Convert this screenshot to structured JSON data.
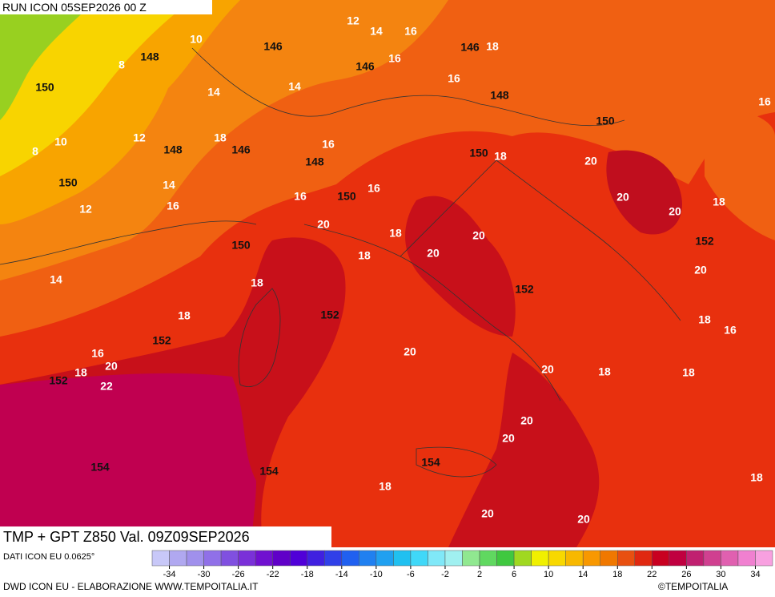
{
  "header": {
    "run": "RUN ICON 05SEP2026 00 Z",
    "field": "TMP + GPT Z850 Val. 09Z09SEP2026"
  },
  "map": {
    "temperature_labels": [
      12,
      14,
      16,
      10,
      18,
      16,
      8,
      16,
      14,
      14,
      16,
      10,
      12,
      18,
      16,
      18,
      20,
      8,
      14,
      16,
      16,
      20,
      18,
      12,
      16,
      20,
      20,
      18,
      20,
      18,
      20,
      20,
      18,
      14,
      18,
      18,
      16,
      16,
      20,
      20,
      18,
      18,
      18,
      20,
      22,
      20,
      20,
      18,
      18,
      20,
      20
    ],
    "geopotential_labels": [
      146,
      148,
      146,
      146,
      150,
      148,
      150,
      148,
      146,
      148,
      150,
      150,
      150,
      152,
      150,
      152,
      152,
      152,
      152,
      154,
      154,
      154
    ]
  },
  "scale": {
    "colors": [
      "#c8c8f8",
      "#b0a8f0",
      "#a090ec",
      "#9070e8",
      "#8050e0",
      "#7a30d8",
      "#7010d0",
      "#6000c8",
      "#5000d8",
      "#4020e0",
      "#3040e8",
      "#2060f0",
      "#2080f0",
      "#20a0f0",
      "#20c0f0",
      "#40d8f8",
      "#80e8f8",
      "#a0f0f0",
      "#90e890",
      "#60d860",
      "#40c840",
      "#a0d820",
      "#f0f000",
      "#f8d800",
      "#f8b800",
      "#f89800",
      "#f07800",
      "#e85010",
      "#e02810",
      "#c80020",
      "#c00040",
      "#c02070",
      "#d04090",
      "#e060b0",
      "#f080d0",
      "#f8a0e0"
    ],
    "ticks": [
      -34,
      -30,
      -26,
      -22,
      -18,
      -14,
      -10,
      -6,
      -2,
      2,
      6,
      10,
      14,
      18,
      22,
      26,
      30,
      34
    ]
  },
  "footer": {
    "source": "DATI ICON EU 0.0625°",
    "credit": "DWD ICON EU - ELABORAZIONE WWW.TEMPOITALIA.IT",
    "copyright": "©TEMPOITALIA"
  }
}
